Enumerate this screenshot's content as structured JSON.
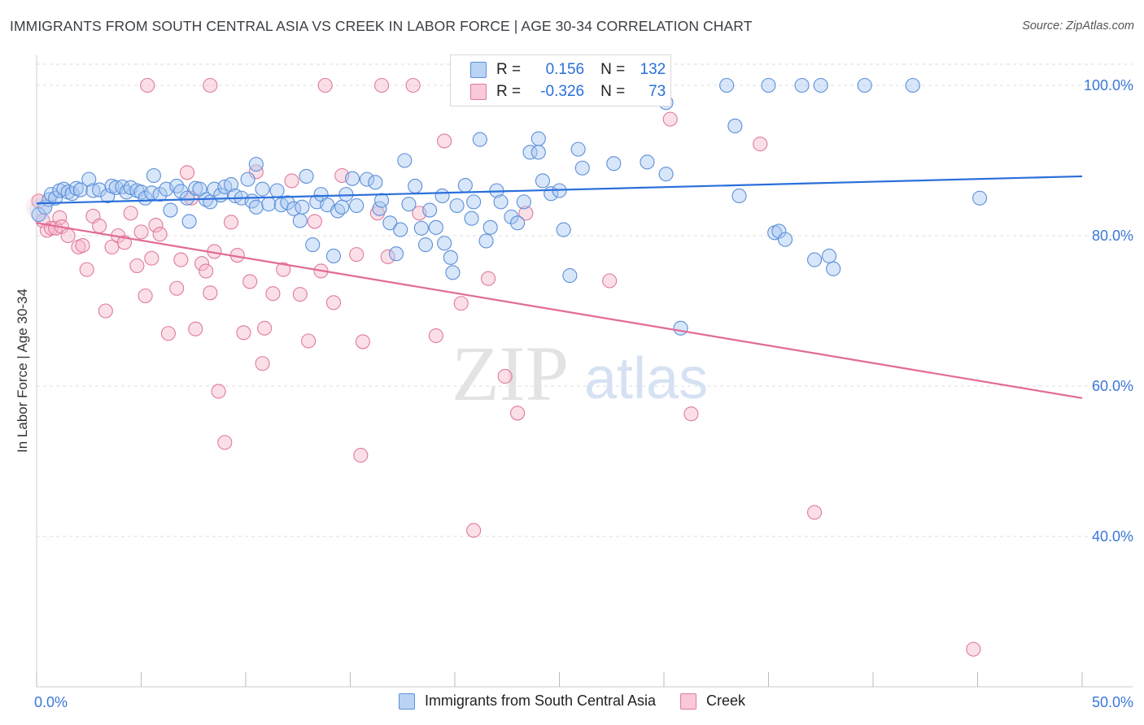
{
  "title": "IMMIGRANTS FROM SOUTH CENTRAL ASIA VS CREEK IN LABOR FORCE | AGE 30-34 CORRELATION CHART",
  "source": "Source: ZipAtlas.com",
  "watermark": {
    "zip": "ZIP",
    "atlas": "atlas"
  },
  "legend": {
    "r_label": "R =",
    "n_label": "N =",
    "rows": [
      {
        "name": "Immigrants from South Central Asia",
        "r": "0.156",
        "n": "132",
        "fill": "#a9c8f2",
        "stroke": "#5b8fd9"
      },
      {
        "name": "Creek",
        "r": "-0.326",
        "n": "73",
        "fill": "#f7b8ca",
        "stroke": "#e07a9b"
      }
    ]
  },
  "colors": {
    "blue_line": "#2a6fdb",
    "pink_line": "#e26a96",
    "axis_text": "#3b78d8",
    "grid": "#dddddd"
  },
  "chart_data": {
    "type": "scatter",
    "title": "IMMIGRANTS FROM SOUTH CENTRAL ASIA VS CREEK IN LABOR FORCE | AGE 30-34 CORRELATION CHART",
    "xlabel": "",
    "ylabel": "In Labor Force | Age 30-34",
    "xlim": [
      0,
      50
    ],
    "ylim": [
      20,
      104
    ],
    "x_tick_labels": [
      "0.0%",
      "50.0%"
    ],
    "y_ticks": [
      40,
      60,
      80,
      100
    ],
    "y_tick_labels": [
      "40.0%",
      "60.0%",
      "80.0%",
      "100.0%"
    ],
    "grid": true,
    "series": [
      {
        "name": "Immigrants from South Central Asia",
        "color": "#5b8fd9",
        "trend": {
          "x": [
            0,
            50
          ],
          "y": [
            84.3,
            87.9
          ]
        },
        "points": [
          [
            0.1,
            82.8
          ],
          [
            0.4,
            83.8
          ],
          [
            0.6,
            84.8
          ],
          [
            0.7,
            85.5
          ],
          [
            0.9,
            85.0
          ],
          [
            1.1,
            86.0
          ],
          [
            1.3,
            86.2
          ],
          [
            1.5,
            85.8
          ],
          [
            1.7,
            85.6
          ],
          [
            1.9,
            86.3
          ],
          [
            2.1,
            86.1
          ],
          [
            2.5,
            87.5
          ],
          [
            2.7,
            86.0
          ],
          [
            3.0,
            86.1
          ],
          [
            3.4,
            85.3
          ],
          [
            3.6,
            86.6
          ],
          [
            3.8,
            86.4
          ],
          [
            4.1,
            86.5
          ],
          [
            4.3,
            85.8
          ],
          [
            4.5,
            86.4
          ],
          [
            4.8,
            86.0
          ],
          [
            5.0,
            85.8
          ],
          [
            5.2,
            85.0
          ],
          [
            5.5,
            85.7
          ],
          [
            5.6,
            88.0
          ],
          [
            5.9,
            85.5
          ],
          [
            6.2,
            86.2
          ],
          [
            6.4,
            83.4
          ],
          [
            6.7,
            86.6
          ],
          [
            6.9,
            85.9
          ],
          [
            7.2,
            85.0
          ],
          [
            7.3,
            81.9
          ],
          [
            7.6,
            86.3
          ],
          [
            7.8,
            86.2
          ],
          [
            8.1,
            84.8
          ],
          [
            8.3,
            84.5
          ],
          [
            8.5,
            86.2
          ],
          [
            8.8,
            85.4
          ],
          [
            9.0,
            86.5
          ],
          [
            9.3,
            86.8
          ],
          [
            9.5,
            85.3
          ],
          [
            9.8,
            85.0
          ],
          [
            10.1,
            87.5
          ],
          [
            10.3,
            84.6
          ],
          [
            10.5,
            83.8
          ],
          [
            10.8,
            86.2
          ],
          [
            11.1,
            84.2
          ],
          [
            11.5,
            86.0
          ],
          [
            11.7,
            84.1
          ],
          [
            12.0,
            84.4
          ],
          [
            12.3,
            83.6
          ],
          [
            12.6,
            82.0
          ],
          [
            12.7,
            83.8
          ],
          [
            12.9,
            87.9
          ],
          [
            13.2,
            78.8
          ],
          [
            13.4,
            84.5
          ],
          [
            13.6,
            85.5
          ],
          [
            13.9,
            84.1
          ],
          [
            14.2,
            77.3
          ],
          [
            14.4,
            83.3
          ],
          [
            14.6,
            83.8
          ],
          [
            14.8,
            85.5
          ],
          [
            15.1,
            87.6
          ],
          [
            15.3,
            84.0
          ],
          [
            15.8,
            87.5
          ],
          [
            16.2,
            87.1
          ],
          [
            16.4,
            83.6
          ],
          [
            16.5,
            84.7
          ],
          [
            16.9,
            81.7
          ],
          [
            17.2,
            77.6
          ],
          [
            17.4,
            80.8
          ],
          [
            17.6,
            90.0
          ],
          [
            17.8,
            84.2
          ],
          [
            18.1,
            86.6
          ],
          [
            18.4,
            81.0
          ],
          [
            18.6,
            78.8
          ],
          [
            18.8,
            83.4
          ],
          [
            19.1,
            81.1
          ],
          [
            19.4,
            85.3
          ],
          [
            19.5,
            79.0
          ],
          [
            19.8,
            77.1
          ],
          [
            19.9,
            75.1
          ],
          [
            20.1,
            84.0
          ],
          [
            20.5,
            86.7
          ],
          [
            20.8,
            82.3
          ],
          [
            20.9,
            84.5
          ],
          [
            21.2,
            92.8
          ],
          [
            21.5,
            79.3
          ],
          [
            21.7,
            81.1
          ],
          [
            22.0,
            86.0
          ],
          [
            22.2,
            84.5
          ],
          [
            22.7,
            82.5
          ],
          [
            23.0,
            81.7
          ],
          [
            23.3,
            84.5
          ],
          [
            23.6,
            91.1
          ],
          [
            24.0,
            92.9
          ],
          [
            24.0,
            91.1
          ],
          [
            24.2,
            87.3
          ],
          [
            24.6,
            85.6
          ],
          [
            25.0,
            86.0
          ],
          [
            25.2,
            80.8
          ],
          [
            25.5,
            74.7
          ],
          [
            25.9,
            91.5
          ],
          [
            26.1,
            89.0
          ],
          [
            27.6,
            89.6
          ],
          [
            29.2,
            89.8
          ],
          [
            30.1,
            88.2
          ],
          [
            30.8,
            67.7
          ],
          [
            33.0,
            100.0
          ],
          [
            33.4,
            94.6
          ],
          [
            33.6,
            85.3
          ],
          [
            35.0,
            100.0
          ],
          [
            35.3,
            80.4
          ],
          [
            35.5,
            80.6
          ],
          [
            35.8,
            79.5
          ],
          [
            36.6,
            100.0
          ],
          [
            37.2,
            76.8
          ],
          [
            37.5,
            100.0
          ],
          [
            37.9,
            77.3
          ],
          [
            38.1,
            75.6
          ],
          [
            39.6,
            100.0
          ],
          [
            41.9,
            100.0
          ],
          [
            45.1,
            85.0
          ],
          [
            30.1,
            97.7
          ],
          [
            10.5,
            89.5
          ]
        ]
      },
      {
        "name": "Creek",
        "color": "#e07a9b",
        "trend": {
          "x": [
            0,
            50
          ],
          "y": [
            81.7,
            58.4
          ]
        },
        "points": [
          [
            0.1,
            84.6
          ],
          [
            0.3,
            82.0
          ],
          [
            0.5,
            80.7
          ],
          [
            0.7,
            81.0
          ],
          [
            0.9,
            81.0
          ],
          [
            1.1,
            82.4
          ],
          [
            1.2,
            81.2
          ],
          [
            1.5,
            80.0
          ],
          [
            2.0,
            78.5
          ],
          [
            2.2,
            78.7
          ],
          [
            2.4,
            75.5
          ],
          [
            2.7,
            82.6
          ],
          [
            3.0,
            81.3
          ],
          [
            3.3,
            70.0
          ],
          [
            3.6,
            78.5
          ],
          [
            3.9,
            80.0
          ],
          [
            4.2,
            79.1
          ],
          [
            4.5,
            83.0
          ],
          [
            4.8,
            76.0
          ],
          [
            5.0,
            80.5
          ],
          [
            5.2,
            72.0
          ],
          [
            5.5,
            77.0
          ],
          [
            5.7,
            81.4
          ],
          [
            5.9,
            80.2
          ],
          [
            6.3,
            67.0
          ],
          [
            6.7,
            73.0
          ],
          [
            6.9,
            76.8
          ],
          [
            7.2,
            88.4
          ],
          [
            7.4,
            85.0
          ],
          [
            7.6,
            67.6
          ],
          [
            7.9,
            76.3
          ],
          [
            8.1,
            75.3
          ],
          [
            8.3,
            72.4
          ],
          [
            8.5,
            77.9
          ],
          [
            8.7,
            59.3
          ],
          [
            9.0,
            52.5
          ],
          [
            9.3,
            81.8
          ],
          [
            9.6,
            77.4
          ],
          [
            9.9,
            67.1
          ],
          [
            10.2,
            73.9
          ],
          [
            10.5,
            88.5
          ],
          [
            10.8,
            63.0
          ],
          [
            10.9,
            67.7
          ],
          [
            11.3,
            72.3
          ],
          [
            11.8,
            75.5
          ],
          [
            12.2,
            87.3
          ],
          [
            12.6,
            72.2
          ],
          [
            13.0,
            66.0
          ],
          [
            13.3,
            81.9
          ],
          [
            13.6,
            75.3
          ],
          [
            14.2,
            71.1
          ],
          [
            14.6,
            88.0
          ],
          [
            15.3,
            77.5
          ],
          [
            15.5,
            50.8
          ],
          [
            15.6,
            65.9
          ],
          [
            16.3,
            83.0
          ],
          [
            16.8,
            77.2
          ],
          [
            18.0,
            100.0
          ],
          [
            18.3,
            83.0
          ],
          [
            19.1,
            66.7
          ],
          [
            19.5,
            92.6
          ],
          [
            20.3,
            71.0
          ],
          [
            20.9,
            40.8
          ],
          [
            21.6,
            74.3
          ],
          [
            22.4,
            61.3
          ],
          [
            23.0,
            56.4
          ],
          [
            23.4,
            83.0
          ],
          [
            27.4,
            74.0
          ],
          [
            30.3,
            95.5
          ],
          [
            31.3,
            56.3
          ],
          [
            34.6,
            92.2
          ],
          [
            37.2,
            43.2
          ],
          [
            44.8,
            25.0
          ],
          [
            5.3,
            100.0
          ],
          [
            8.3,
            100.0
          ],
          [
            13.8,
            100.0
          ],
          [
            16.5,
            100.0
          ]
        ]
      }
    ]
  }
}
